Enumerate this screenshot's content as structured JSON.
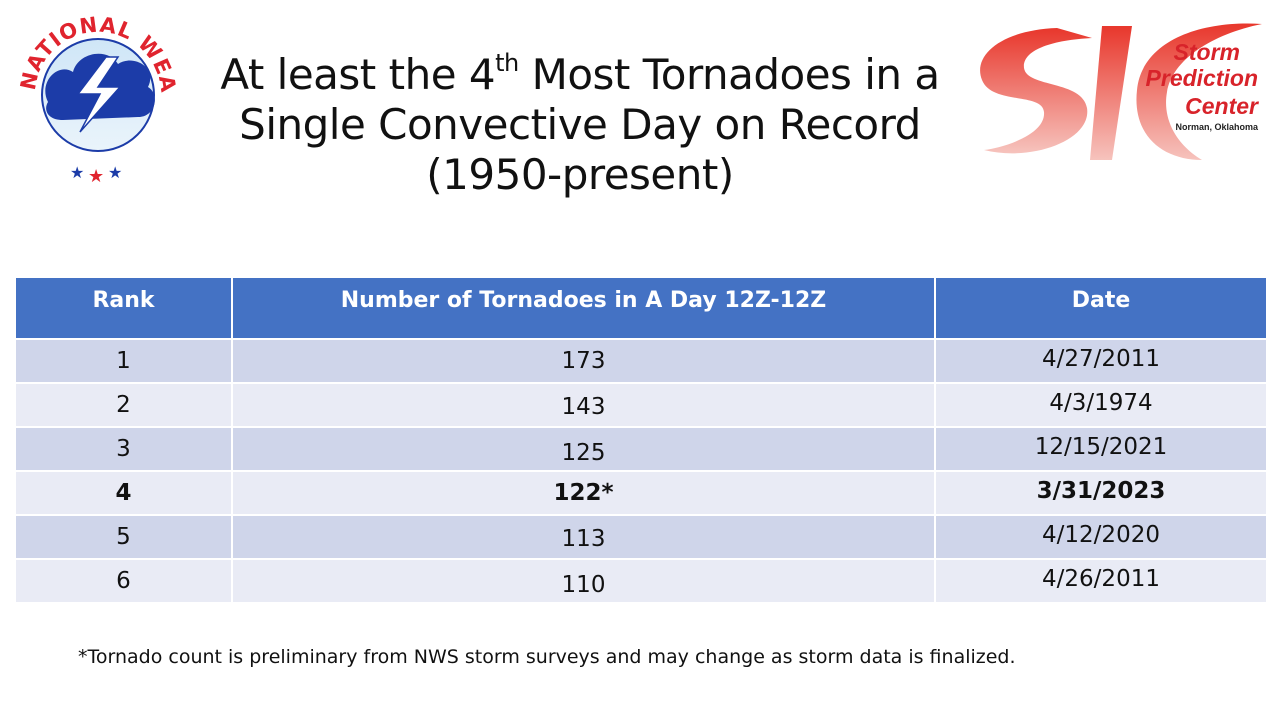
{
  "logos": {
    "nws_text": "NATIONAL WEATHER SERVICE",
    "spc_line1": "Storm",
    "spc_line2": "Prediction",
    "spc_line3": "Center",
    "spc_line4": "Norman, Oklahoma"
  },
  "title": {
    "pre": "At least the 4",
    "sup": "th",
    "post": " Most Tornadoes in a",
    "line2": "Single Convective Day on Record",
    "line3": "(1950-present)"
  },
  "table": {
    "headers": [
      "Rank",
      "Number of Tornadoes in A Day 12Z-12Z",
      "Date"
    ],
    "rows": [
      {
        "rank": "1",
        "count": "173",
        "date": "4/27/2011"
      },
      {
        "rank": "2",
        "count": "143",
        "date": "4/3/1974"
      },
      {
        "rank": "3",
        "count": "125",
        "date": "12/15/2021"
      },
      {
        "rank": "4",
        "count": "122*",
        "date": "3/31/2023"
      },
      {
        "rank": "5",
        "count": "113",
        "date": "4/12/2020"
      },
      {
        "rank": "6",
        "count": "110",
        "date": "4/26/2011"
      }
    ]
  },
  "footnote": "*Tornado count is preliminary from NWS storm surveys and may change as storm data is finalized.",
  "colors": {
    "header_bg": "#4472c4",
    "row_odd": "#cfd5ea",
    "row_even": "#e9ebf5",
    "nws_red": "#e0242e",
    "nws_blue": "#1c3ca8",
    "spc_red": "#e8372c"
  }
}
